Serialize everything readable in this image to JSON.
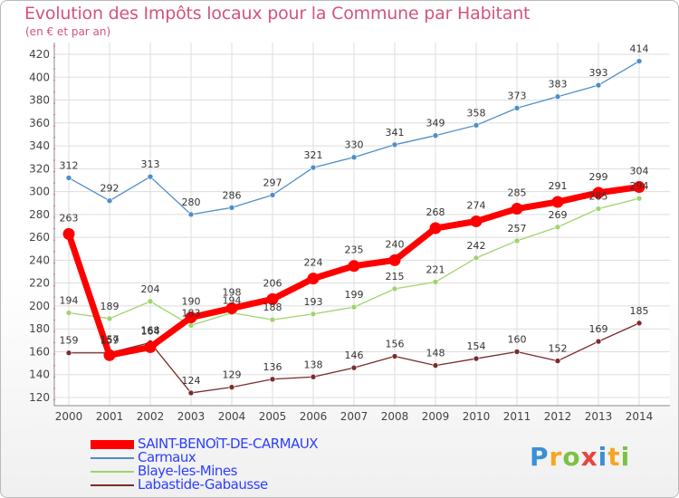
{
  "header": {
    "title": "Evolution des Impôts locaux pour la Commune par Habitant",
    "subtitle": "(en € et par an)"
  },
  "chart_data": {
    "type": "line",
    "x": [
      2000,
      2001,
      2002,
      2003,
      2004,
      2005,
      2006,
      2007,
      2008,
      2009,
      2010,
      2011,
      2012,
      2013,
      2014
    ],
    "ylim": [
      120,
      420
    ],
    "yticks": [
      120,
      140,
      160,
      180,
      200,
      220,
      240,
      260,
      280,
      300,
      320,
      340,
      360,
      380,
      400,
      420
    ],
    "grid": true,
    "legend_position": "bottom-left",
    "series": [
      {
        "name": "Carmaux",
        "color": "#4f8ec9",
        "values": [
          312,
          292,
          313,
          280,
          286,
          297,
          321,
          330,
          341,
          349,
          358,
          373,
          383,
          393,
          414
        ]
      },
      {
        "name": "Blaye-les-Mines",
        "color": "#9fd46d",
        "values": [
          194,
          189,
          204,
          183,
          194,
          188,
          193,
          199,
          215,
          221,
          242,
          257,
          269,
          285,
          294
        ]
      },
      {
        "name": "Labastide-Gabausse",
        "color": "#7b2c2c",
        "values": [
          159,
          159,
          168,
          124,
          129,
          136,
          138,
          146,
          156,
          148,
          154,
          160,
          152,
          169,
          185
        ]
      },
      {
        "name": "SAINT-BENOîT-DE-CARMAUX",
        "color": "#ff0000",
        "values": [
          263,
          157,
          164,
          190,
          198,
          206,
          224,
          235,
          240,
          268,
          274,
          285,
          291,
          299,
          304
        ]
      }
    ],
    "legend": [
      "SAINT-BENOîT-DE-CARMAUX",
      "Carmaux",
      "Blaye-les-Mines",
      "Labastide-Gabausse"
    ]
  },
  "logo": {
    "letters": [
      "P",
      "r",
      "o",
      "x",
      "i",
      "t",
      "i"
    ],
    "colors": [
      "#3a8fd8",
      "#f6a623",
      "#7cc243",
      "#e8433d",
      "#3a8fd8",
      "#f6a623",
      "#7cc243"
    ]
  }
}
